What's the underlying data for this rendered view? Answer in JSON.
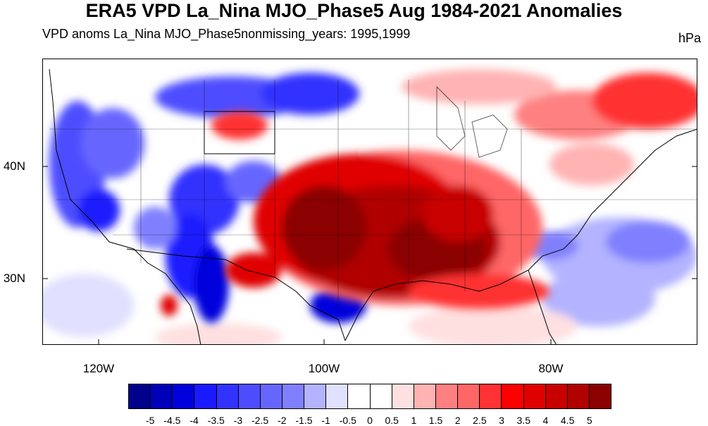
{
  "title": "ERA5 VPD La_Nina MJO_Phase5 Aug 1984-2021 Anomalies",
  "subtitle_left": "VPD anoms La_Nina MJO_Phase5nonmissing_years: 1995,1999",
  "subtitle_right": "hPa",
  "lat_labels": [
    "40N",
    "30N"
  ],
  "lon_labels": [
    "120W",
    "100W",
    "80W"
  ],
  "colorbar": {
    "colors": [
      "#00008b",
      "#0000b8",
      "#0000dd",
      "#1a1aff",
      "#3333ff",
      "#4d4dff",
      "#6666ff",
      "#8080ff",
      "#b3b3ff",
      "#e0e0ff",
      "#ffffff",
      "#ffffff",
      "#ffe0e0",
      "#ffb3b3",
      "#ff8080",
      "#ff6666",
      "#ff3333",
      "#ff0000",
      "#e00000",
      "#c80000",
      "#b00000",
      "#8b0000"
    ],
    "labels": [
      "-5",
      "-4.5",
      "-4",
      "-3.5",
      "-3",
      "-2.5",
      "-2",
      "-1.5",
      "-1",
      "-0.5",
      "0",
      "0.5",
      "1",
      "1.5",
      "2",
      "2.5",
      "3",
      "3.5",
      "4",
      "4.5",
      "5"
    ]
  }
}
